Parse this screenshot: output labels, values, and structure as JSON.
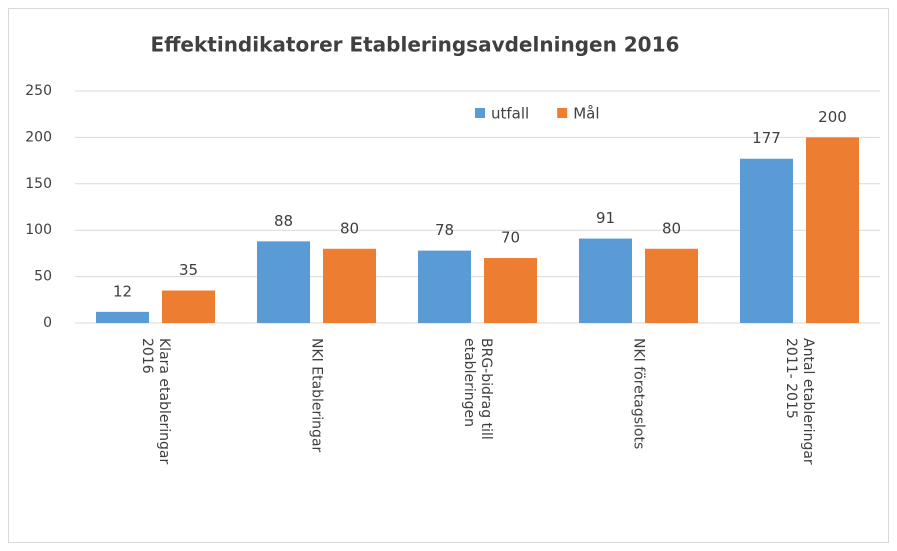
{
  "chart_data": {
    "type": "bar",
    "title": "Effektindikatorer Etableringsavdelningen 2016",
    "categories": [
      [
        "Klara etableringar",
        "2016"
      ],
      [
        "NKI Etableringar"
      ],
      [
        "BRG-bidrag till",
        "etableringen"
      ],
      [
        "NKI företagslots"
      ],
      [
        "Antal etableringar",
        "2011- 2015"
      ]
    ],
    "series": [
      {
        "name": "utfall",
        "color": "#5b9bd5",
        "values": [
          12,
          88,
          78,
          91,
          177
        ]
      },
      {
        "name": "Mål",
        "color": "#ed7d31",
        "values": [
          35,
          80,
          70,
          80,
          200
        ]
      }
    ],
    "ylim": [
      0,
      250
    ],
    "yticks": [
      0,
      50,
      100,
      150,
      200,
      250
    ],
    "grid": true,
    "legend": "top-right"
  }
}
